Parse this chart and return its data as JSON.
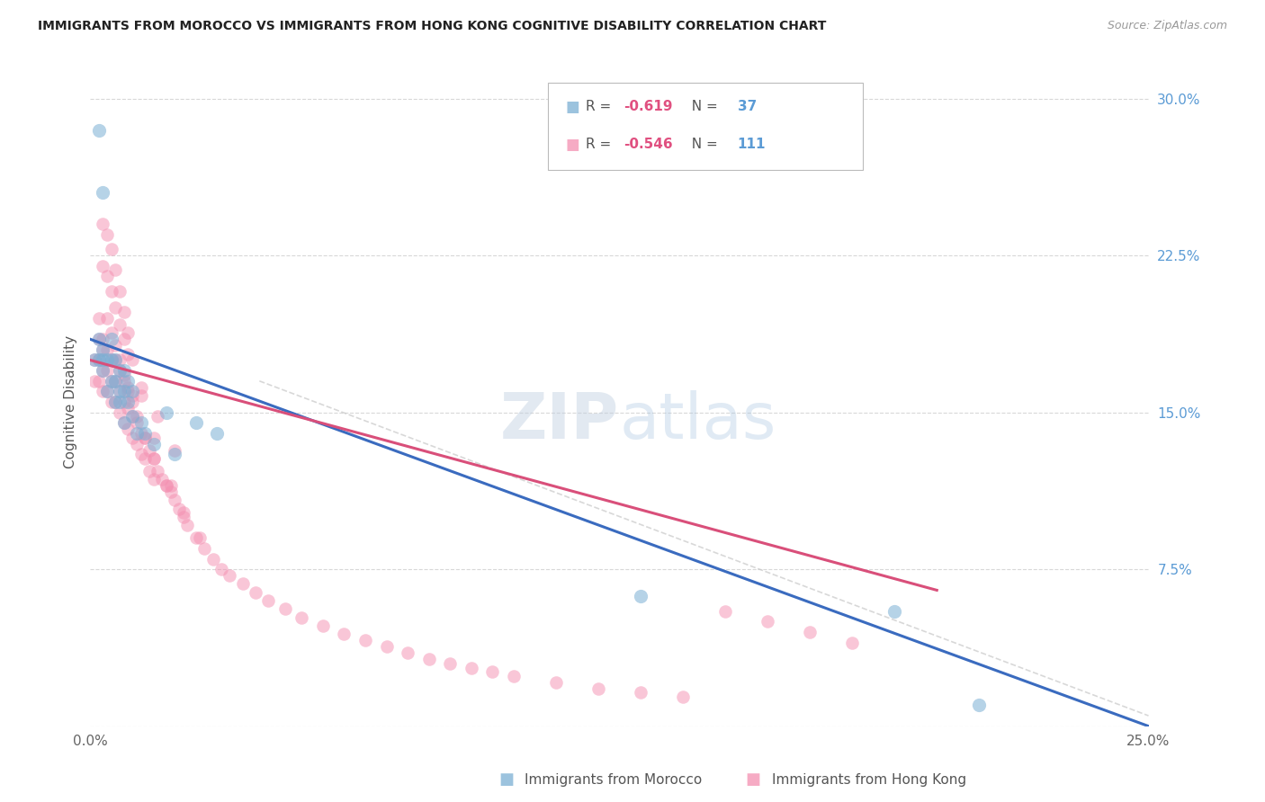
{
  "title": "IMMIGRANTS FROM MOROCCO VS IMMIGRANTS FROM HONG KONG COGNITIVE DISABILITY CORRELATION CHART",
  "source": "Source: ZipAtlas.com",
  "ylabel": "Cognitive Disability",
  "footer_labels": [
    "Immigrants from Morocco",
    "Immigrants from Hong Kong"
  ],
  "xlim": [
    0.0,
    0.25
  ],
  "ylim": [
    0.0,
    0.31
  ],
  "xticks": [
    0.0,
    0.025,
    0.05,
    0.075,
    0.1,
    0.125,
    0.15,
    0.175,
    0.2,
    0.225,
    0.25
  ],
  "yticks_right": [
    0.0,
    0.075,
    0.15,
    0.225,
    0.3
  ],
  "ytick_labels_right": [
    "",
    "7.5%",
    "15.0%",
    "22.5%",
    "30.0%"
  ],
  "background_color": "#ffffff",
  "grid_color": "#d8d8d8",
  "morocco_color": "#7bafd4",
  "hk_color": "#f48fb1",
  "line_blue": "#3a6bbf",
  "line_pink": "#d94f7a",
  "line_gray": "#c8c8c8",
  "r_color": "#e05080",
  "n_color": "#5b9bd5",
  "morocco_x": [
    0.001,
    0.002,
    0.002,
    0.003,
    0.003,
    0.003,
    0.004,
    0.004,
    0.005,
    0.005,
    0.005,
    0.006,
    0.006,
    0.006,
    0.007,
    0.007,
    0.007,
    0.008,
    0.008,
    0.008,
    0.009,
    0.009,
    0.01,
    0.01,
    0.011,
    0.012,
    0.013,
    0.015,
    0.018,
    0.02,
    0.025,
    0.03,
    0.13,
    0.19,
    0.21,
    0.002,
    0.003
  ],
  "morocco_y": [
    0.175,
    0.185,
    0.175,
    0.175,
    0.18,
    0.17,
    0.175,
    0.16,
    0.185,
    0.175,
    0.165,
    0.175,
    0.165,
    0.155,
    0.17,
    0.16,
    0.155,
    0.17,
    0.16,
    0.145,
    0.165,
    0.155,
    0.16,
    0.148,
    0.14,
    0.145,
    0.14,
    0.135,
    0.15,
    0.13,
    0.145,
    0.14,
    0.062,
    0.055,
    0.01,
    0.285,
    0.255
  ],
  "hk_x": [
    0.001,
    0.001,
    0.002,
    0.002,
    0.002,
    0.003,
    0.003,
    0.003,
    0.004,
    0.004,
    0.004,
    0.005,
    0.005,
    0.005,
    0.006,
    0.006,
    0.006,
    0.007,
    0.007,
    0.007,
    0.008,
    0.008,
    0.008,
    0.009,
    0.009,
    0.009,
    0.01,
    0.01,
    0.01,
    0.011,
    0.011,
    0.012,
    0.012,
    0.013,
    0.013,
    0.014,
    0.014,
    0.015,
    0.015,
    0.016,
    0.017,
    0.018,
    0.019,
    0.02,
    0.021,
    0.022,
    0.023,
    0.025,
    0.027,
    0.029,
    0.031,
    0.033,
    0.036,
    0.039,
    0.042,
    0.046,
    0.05,
    0.055,
    0.06,
    0.065,
    0.07,
    0.075,
    0.08,
    0.085,
    0.09,
    0.095,
    0.1,
    0.11,
    0.12,
    0.13,
    0.14,
    0.15,
    0.16,
    0.17,
    0.18,
    0.002,
    0.003,
    0.004,
    0.005,
    0.006,
    0.007,
    0.008,
    0.009,
    0.01,
    0.011,
    0.013,
    0.015,
    0.018,
    0.022,
    0.026,
    0.003,
    0.004,
    0.005,
    0.006,
    0.007,
    0.008,
    0.009,
    0.012,
    0.016,
    0.02,
    0.003,
    0.004,
    0.005,
    0.006,
    0.007,
    0.008,
    0.009,
    0.01,
    0.012,
    0.015,
    0.019
  ],
  "hk_y": [
    0.175,
    0.165,
    0.185,
    0.175,
    0.165,
    0.18,
    0.17,
    0.16,
    0.18,
    0.17,
    0.16,
    0.175,
    0.165,
    0.155,
    0.175,
    0.165,
    0.155,
    0.17,
    0.16,
    0.15,
    0.165,
    0.155,
    0.145,
    0.162,
    0.152,
    0.142,
    0.158,
    0.148,
    0.138,
    0.145,
    0.135,
    0.14,
    0.13,
    0.138,
    0.128,
    0.132,
    0.122,
    0.128,
    0.118,
    0.122,
    0.118,
    0.115,
    0.112,
    0.108,
    0.104,
    0.1,
    0.096,
    0.09,
    0.085,
    0.08,
    0.075,
    0.072,
    0.068,
    0.064,
    0.06,
    0.056,
    0.052,
    0.048,
    0.044,
    0.041,
    0.038,
    0.035,
    0.032,
    0.03,
    0.028,
    0.026,
    0.024,
    0.021,
    0.018,
    0.016,
    0.014,
    0.055,
    0.05,
    0.045,
    0.04,
    0.195,
    0.185,
    0.195,
    0.188,
    0.182,
    0.175,
    0.168,
    0.16,
    0.155,
    0.148,
    0.138,
    0.128,
    0.115,
    0.102,
    0.09,
    0.22,
    0.215,
    0.208,
    0.2,
    0.192,
    0.185,
    0.178,
    0.162,
    0.148,
    0.132,
    0.24,
    0.235,
    0.228,
    0.218,
    0.208,
    0.198,
    0.188,
    0.175,
    0.158,
    0.138,
    0.115
  ],
  "morocco_line_x": [
    0.0,
    0.25
  ],
  "morocco_line_y": [
    0.185,
    0.0
  ],
  "hk_line_x": [
    0.0,
    0.2
  ],
  "hk_line_y": [
    0.175,
    0.065
  ],
  "overall_line_x": [
    0.04,
    0.25
  ],
  "overall_line_y": [
    0.165,
    0.005
  ],
  "legend_r1": "R = ",
  "legend_v1": "-0.619",
  "legend_n1": "N = ",
  "legend_nv1": "37",
  "legend_r2": "R = ",
  "legend_v2": "-0.546",
  "legend_n2": "N = ",
  "legend_nv2": "111"
}
